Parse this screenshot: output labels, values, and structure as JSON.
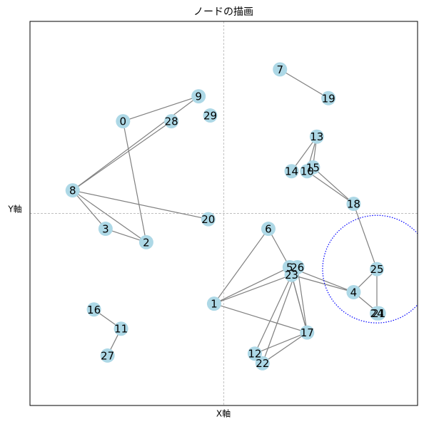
{
  "chart_data": {
    "type": "network",
    "title": "ノードの描画",
    "x_label": "X軸",
    "y_label": "Y軸",
    "xlim": [
      -1,
      1
    ],
    "ylim": [
      -1,
      1
    ],
    "axhline": 0,
    "axvline": 0,
    "node_color": "#add8e6",
    "edge_color": "#808080",
    "nodes": [
      {
        "label": "0",
        "x": -0.52,
        "y": 0.48
      },
      {
        "label": "1",
        "x": -0.05,
        "y": -0.47
      },
      {
        "label": "2",
        "x": -0.4,
        "y": -0.15
      },
      {
        "label": "3",
        "x": -0.61,
        "y": -0.08
      },
      {
        "label": "4",
        "x": 0.67,
        "y": -0.41
      },
      {
        "label": "5",
        "x": 0.34,
        "y": -0.28
      },
      {
        "label": "6",
        "x": 0.23,
        "y": -0.08
      },
      {
        "label": "7",
        "x": 0.29,
        "y": 0.75
      },
      {
        "label": "8",
        "x": -0.78,
        "y": 0.12
      },
      {
        "label": "9",
        "x": -0.13,
        "y": 0.61
      },
      {
        "label": "10",
        "x": 0.43,
        "y": 0.22
      },
      {
        "label": "11",
        "x": -0.53,
        "y": -0.6
      },
      {
        "label": "12",
        "x": 0.16,
        "y": -0.73
      },
      {
        "label": "13",
        "x": 0.48,
        "y": 0.4
      },
      {
        "label": "14",
        "x": 0.35,
        "y": 0.22
      },
      {
        "label": "15",
        "x": 0.46,
        "y": 0.24
      },
      {
        "label": "16",
        "x": -0.67,
        "y": -0.5
      },
      {
        "label": "17",
        "x": 0.43,
        "y": -0.62
      },
      {
        "label": "18",
        "x": 0.67,
        "y": 0.05
      },
      {
        "label": "19",
        "x": 0.54,
        "y": 0.6
      },
      {
        "label": "20",
        "x": -0.08,
        "y": -0.03
      },
      {
        "label": "21",
        "x": 0.8,
        "y": -0.52
      },
      {
        "label": "22",
        "x": 0.2,
        "y": -0.78
      },
      {
        "label": "23",
        "x": 0.35,
        "y": -0.32
      },
      {
        "label": "24",
        "x": 0.79,
        "y": -0.52
      },
      {
        "label": "25",
        "x": 0.79,
        "y": -0.29
      },
      {
        "label": "26",
        "x": 0.38,
        "y": -0.28
      },
      {
        "label": "27",
        "x": -0.6,
        "y": -0.74
      },
      {
        "label": "28",
        "x": -0.27,
        "y": 0.48
      },
      {
        "label": "29",
        "x": -0.07,
        "y": 0.51
      }
    ],
    "edges": [
      [
        0,
        9
      ],
      [
        0,
        2
      ],
      [
        8,
        9
      ],
      [
        8,
        28
      ],
      [
        8,
        3
      ],
      [
        8,
        2
      ],
      [
        8,
        20
      ],
      [
        3,
        2
      ],
      [
        7,
        19
      ],
      [
        13,
        14
      ],
      [
        13,
        10
      ],
      [
        13,
        15
      ],
      [
        15,
        10
      ],
      [
        15,
        18
      ],
      [
        10,
        18
      ],
      [
        18,
        25
      ],
      [
        25,
        4
      ],
      [
        25,
        24
      ],
      [
        4,
        21
      ],
      [
        6,
        1
      ],
      [
        6,
        5
      ],
      [
        1,
        5
      ],
      [
        1,
        23
      ],
      [
        1,
        17
      ],
      [
        5,
        4
      ],
      [
        23,
        4
      ],
      [
        26,
        17
      ],
      [
        5,
        17
      ],
      [
        23,
        17
      ],
      [
        23,
        12
      ],
      [
        26,
        22
      ],
      [
        12,
        17
      ],
      [
        22,
        17
      ],
      [
        16,
        11
      ],
      [
        11,
        27
      ]
    ],
    "highlight": {
      "node": 25,
      "radius": 0.28,
      "color": "#0000ff"
    }
  }
}
